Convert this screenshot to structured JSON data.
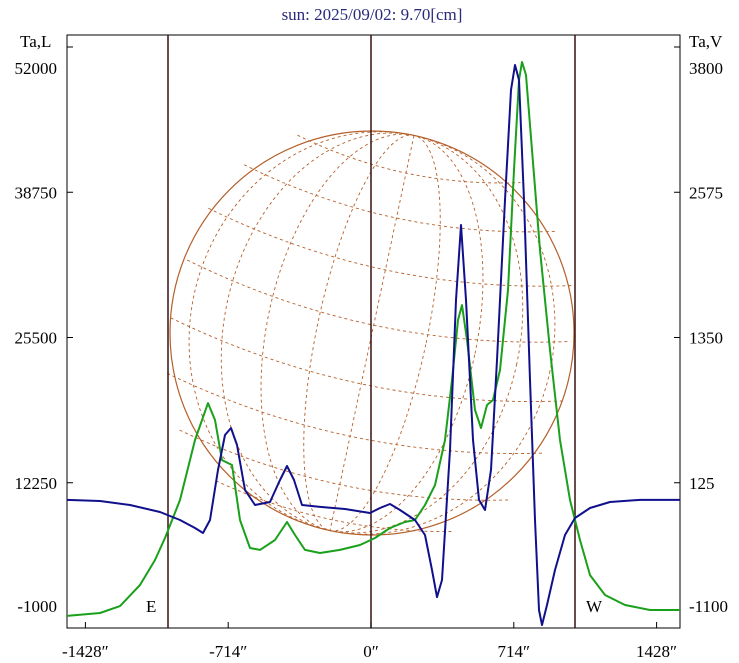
{
  "chart_data": {
    "type": "line",
    "title": "sun: 2025/09/02: 9.70[cm]",
    "ylabel": "Ta,L",
    "y2label": "Ta,V",
    "annotations": [
      "E",
      "W"
    ],
    "xlim": [
      -1520,
      1545
    ],
    "xticks": [
      {
        "value": -1428,
        "label": "-1428″"
      },
      {
        "value": -714,
        "label": "-714″"
      },
      {
        "value": 0,
        "label": "0″"
      },
      {
        "value": 714,
        "label": "714″"
      },
      {
        "value": 1428,
        "label": "1428″"
      }
    ],
    "ylim": [
      -1000,
      52000
    ],
    "yticks": [
      -1000,
      12250,
      25500,
      38750,
      52000
    ],
    "y2lim": [
      -1100,
      3800
    ],
    "y2ticks": [
      -1100,
      125,
      1350,
      2575,
      3800
    ],
    "series": [
      {
        "name": "Ta,L",
        "color": "#1aa01a",
        "x": [
          -1520,
          -1355,
          -1255,
          -1155,
          -1080,
          -1030,
          -955,
          -880,
          -815,
          -780,
          -745,
          -695,
          -655,
          -605,
          -555,
          -480,
          -420,
          -380,
          -330,
          -255,
          -155,
          -55,
          20,
          95,
          170,
          220,
          270,
          320,
          370,
          405,
          435,
          455,
          480,
          520,
          550,
          580,
          610,
          645,
          685,
          715,
          740,
          755,
          775,
          805,
          845,
          895,
          945,
          995,
          1045,
          1095,
          1170,
          1270,
          1395,
          1545
        ],
        "values": [
          100,
          370,
          1000,
          2920,
          5200,
          7210,
          10680,
          16150,
          19520,
          17970,
          14320,
          13870,
          8850,
          6300,
          6120,
          7030,
          8670,
          7480,
          6120,
          5840,
          6120,
          6570,
          7210,
          8120,
          8670,
          8850,
          10220,
          12040,
          16150,
          21620,
          27100,
          28460,
          25270,
          18890,
          17240,
          19340,
          19800,
          22530,
          29830,
          40780,
          48990,
          50630,
          49450,
          42600,
          33480,
          24360,
          16150,
          10680,
          7030,
          3830,
          2010,
          1100,
          640,
          640
        ]
      },
      {
        "name": "Ta,V",
        "color": "#10108c",
        "axis": "y2",
        "x": [
          -1520,
          -1355,
          -1205,
          -1055,
          -955,
          -880,
          -840,
          -805,
          -765,
          -730,
          -700,
          -670,
          -630,
          -580,
          -505,
          -455,
          -420,
          -385,
          -345,
          -255,
          -130,
          -5,
          45,
          95,
          145,
          220,
          270,
          305,
          330,
          355,
          395,
          425,
          450,
          475,
          510,
          540,
          570,
          600,
          630,
          670,
          700,
          720,
          740,
          765,
          795,
          820,
          840,
          855,
          880,
          920,
          970,
          1020,
          1095,
          1195,
          1345,
          1545
        ],
        "values": [
          -20,
          -29,
          -63,
          -122,
          -189,
          -257,
          -299,
          -189,
          233,
          528,
          587,
          443,
          64,
          -63,
          -37,
          148,
          266,
          148,
          -63,
          -79,
          -96,
          -130,
          -88,
          -54,
          -105,
          -189,
          -316,
          -611,
          -839,
          -695,
          401,
          1666,
          2299,
          1666,
          486,
          -20,
          -105,
          233,
          1160,
          2510,
          3437,
          3648,
          3522,
          2510,
          992,
          -189,
          -948,
          -1075,
          -906,
          -611,
          -316,
          -172,
          -88,
          -37,
          -20,
          -20
        ]
      }
    ]
  }
}
